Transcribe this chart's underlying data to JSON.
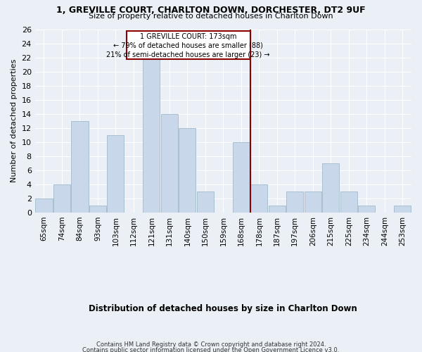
{
  "title1": "1, GREVILLE COURT, CHARLTON DOWN, DORCHESTER, DT2 9UF",
  "title2": "Size of property relative to detached houses in Charlton Down",
  "xlabel": "Distribution of detached houses by size in Charlton Down",
  "ylabel": "Number of detached properties",
  "footer1": "Contains HM Land Registry data © Crown copyright and database right 2024.",
  "footer2": "Contains public sector information licensed under the Open Government Licence v3.0.",
  "bar_labels": [
    "65sqm",
    "74sqm",
    "84sqm",
    "93sqm",
    "103sqm",
    "112sqm",
    "121sqm",
    "131sqm",
    "140sqm",
    "150sqm",
    "159sqm",
    "168sqm",
    "178sqm",
    "187sqm",
    "197sqm",
    "206sqm",
    "215sqm",
    "225sqm",
    "234sqm",
    "244sqm",
    "253sqm"
  ],
  "bar_values": [
    2,
    4,
    13,
    1,
    11,
    0,
    22,
    14,
    12,
    3,
    0,
    10,
    4,
    1,
    3,
    3,
    7,
    3,
    1,
    0,
    1
  ],
  "bar_color": "#c8d8ea",
  "bar_edge_color": "#a8bfcf",
  "property_line_label": "1 GREVILLE COURT: 173sqm",
  "annotation_line1": "← 79% of detached houses are smaller (88)",
  "annotation_line2": "21% of semi-detached houses are larger (23) →",
  "box_color": "#8b0000",
  "ylim": [
    0,
    26
  ],
  "yticks": [
    0,
    2,
    4,
    6,
    8,
    10,
    12,
    14,
    16,
    18,
    20,
    22,
    24,
    26
  ],
  "bg_color": "#eaf0f6",
  "grid_color": "#ffffff",
  "line_x_index": 11.5
}
